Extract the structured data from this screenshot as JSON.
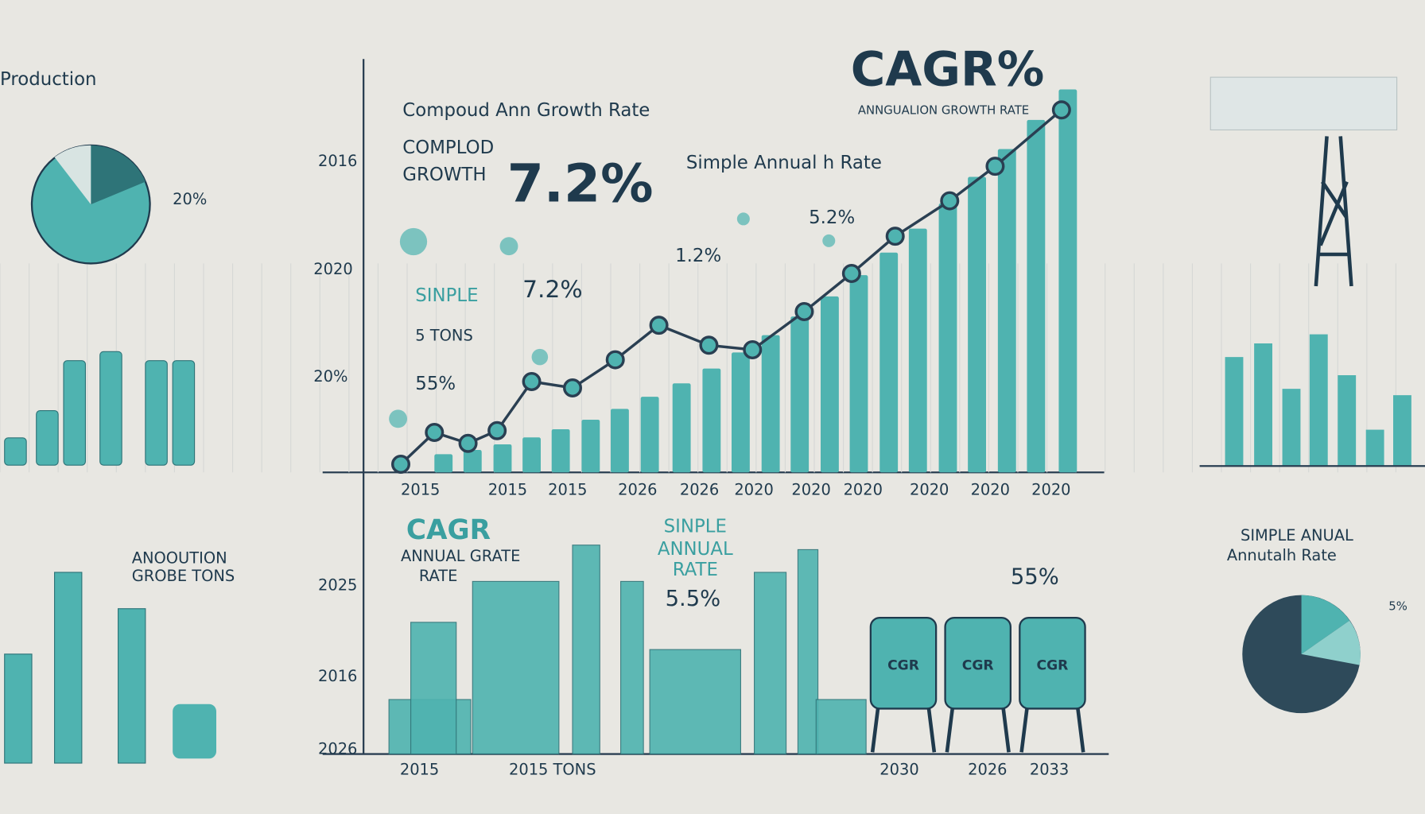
{
  "left_panel": {
    "title": "Production",
    "pie_label": "20%",
    "caption": [
      "Anooution",
      "Grobe Tons"
    ]
  },
  "header": {
    "subtitle": "Compoud Ann Growth Rate",
    "title": "CAGR%",
    "title_caption": "Anngualion Growth Rate"
  },
  "center_chart": {
    "axis_labels": [
      "2016",
      "2020",
      "20%"
    ],
    "compound": [
      "Complod",
      "Growth"
    ],
    "big_rate": "7.2%",
    "simple_label": "Simple Annual  h Rate",
    "rates": [
      "5.2%",
      "1.2%"
    ],
    "simple_block": {
      "label": "Sinple",
      "rate": "7.2%",
      "tons": "5 Tons",
      "share": "55%"
    },
    "x_labels": [
      "2015",
      "2015",
      "2015",
      "2026",
      "2026",
      "2020",
      "2020",
      "2020",
      "2020",
      "2020",
      "2020"
    ]
  },
  "lower_panel": {
    "cagr": "CAGR",
    "cagr_caption": [
      "Annual Grate",
      "Rate"
    ],
    "simple": [
      "Sinple",
      "Annual",
      "Rate"
    ],
    "simple_rate": "5.5%",
    "tank_rate": "55%",
    "tank_labels": [
      "CGR",
      "CGR",
      "CGR"
    ],
    "axis_labels": [
      "2025",
      "2016",
      "2026"
    ],
    "x_labels": [
      "2015",
      "2015 Tons",
      "2030",
      "2026",
      "2033"
    ]
  },
  "right_panel": {
    "caption": [
      "Simple Anual",
      "Annutalh Rate"
    ],
    "pie_label": "5%"
  }
}
